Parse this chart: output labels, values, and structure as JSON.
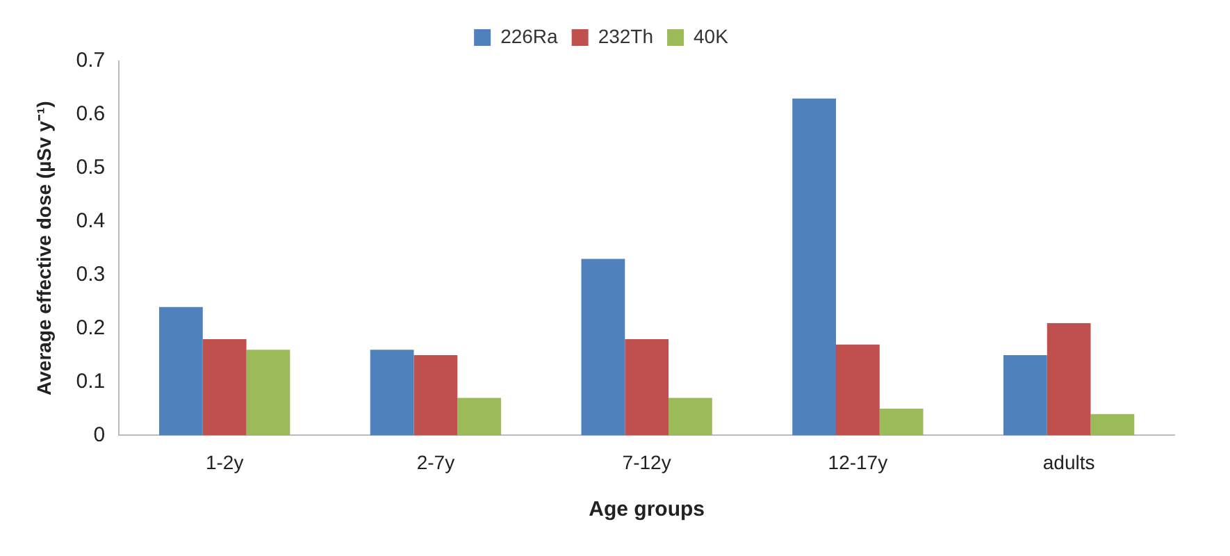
{
  "chart_data": {
    "type": "bar",
    "xlabel": "Age groups",
    "ylabel": "Average effective dose (µSv y⁻¹)",
    "categories": [
      "1-2y",
      "2-7y",
      "7-12y",
      "12-17y",
      "adults"
    ],
    "series": [
      {
        "name": "226Ra",
        "color": "#4f81bd",
        "values": [
          0.24,
          0.16,
          0.33,
          0.63,
          0.15
        ]
      },
      {
        "name": "232Th",
        "color": "#c0504d",
        "values": [
          0.18,
          0.15,
          0.18,
          0.17,
          0.21
        ]
      },
      {
        "name": "40K",
        "color": "#9bbb59",
        "values": [
          0.16,
          0.07,
          0.07,
          0.05,
          0.04
        ]
      }
    ],
    "ylim": [
      0,
      0.7
    ],
    "yticks": [
      0,
      0.1,
      0.2,
      0.3,
      0.4,
      0.5,
      0.6,
      0.7
    ],
    "grid": false,
    "legend": "top"
  }
}
